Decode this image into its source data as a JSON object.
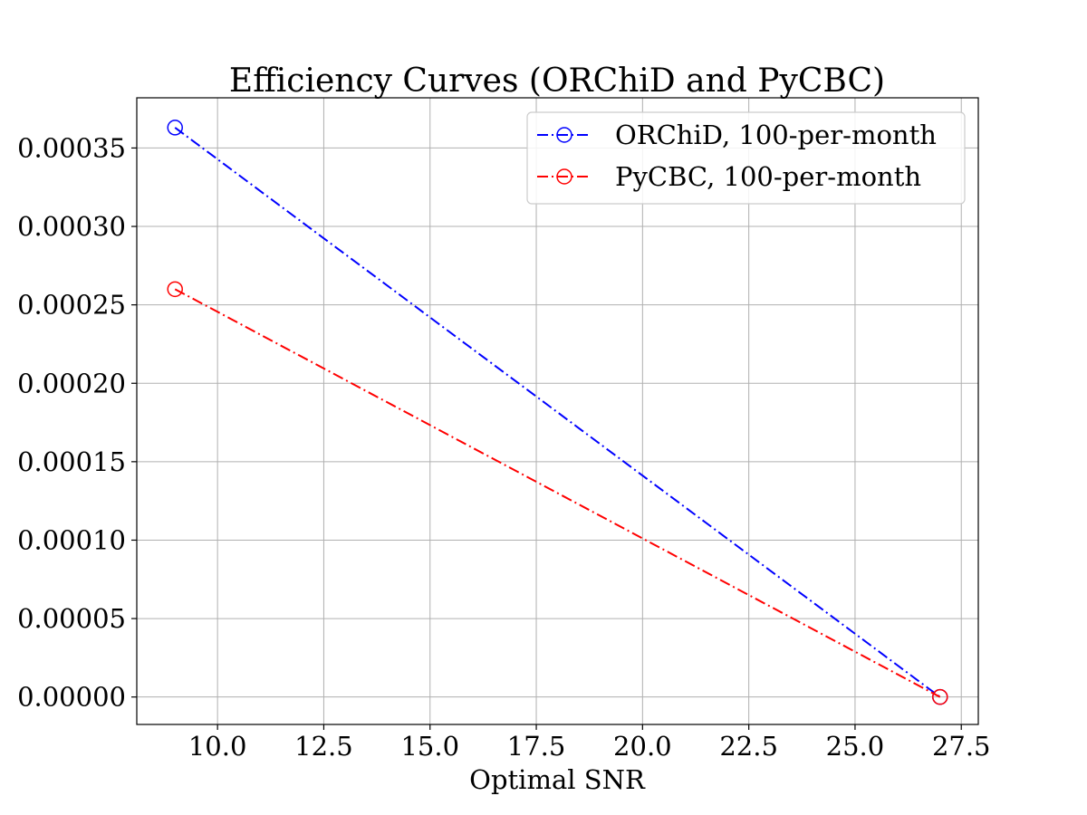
{
  "chart_data": {
    "type": "line",
    "title": "Efficiency Curves (ORChiD and PyCBC)",
    "xlabel": "Optimal SNR",
    "ylabel": "",
    "xlim": [
      8.1,
      27.9
    ],
    "ylim": [
      -1.75e-05,
      0.000382
    ],
    "grid": true,
    "legend_position": "top-right",
    "x_ticks": [
      "10.0",
      "12.5",
      "15.0",
      "17.5",
      "20.0",
      "22.5",
      "25.0",
      "27.5"
    ],
    "y_ticks": [
      "0.00000",
      "0.00005",
      "0.00010",
      "0.00015",
      "0.00020",
      "0.00025",
      "0.00030",
      "0.00035"
    ],
    "series": [
      {
        "name": "ORChiD, 100-per-month",
        "color": "#0000ff",
        "line_style": "dashdot",
        "marker": "open-circle",
        "x": [
          9.0,
          27.0
        ],
        "y": [
          0.000363,
          0.0
        ]
      },
      {
        "name": "PyCBC, 100-per-month",
        "color": "#ff0000",
        "line_style": "dashdot",
        "marker": "open-circle",
        "x": [
          9.0,
          27.0
        ],
        "y": [
          0.00026,
          0.0
        ]
      }
    ]
  }
}
